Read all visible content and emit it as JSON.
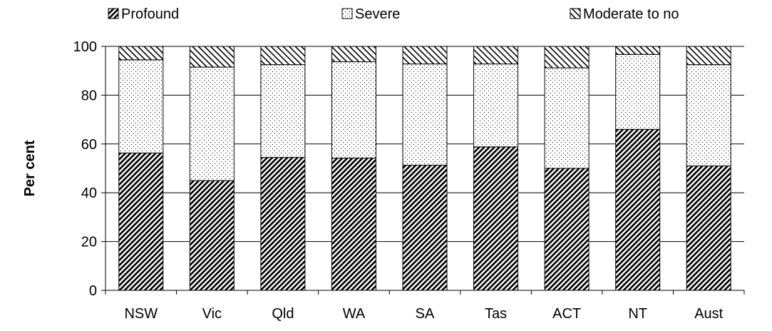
{
  "chart_data": {
    "type": "bar",
    "stacked": true,
    "categories": [
      "NSW",
      "Vic",
      "Qld",
      "WA",
      "SA",
      "Tas",
      "ACT",
      "NT",
      "Aust"
    ],
    "series": [
      {
        "name": "Profound",
        "values": [
          56.3,
          45.0,
          54.5,
          54.2,
          51.3,
          58.8,
          50.0,
          66.0,
          51.0
        ],
        "pattern": "dense-diagonal"
      },
      {
        "name": "Severe",
        "values": [
          38.2,
          46.5,
          38.0,
          39.5,
          41.5,
          34.0,
          41.2,
          30.7,
          41.5
        ],
        "pattern": "dots"
      },
      {
        "name": "Moderate to no",
        "values": [
          5.5,
          8.5,
          7.5,
          6.3,
          7.2,
          7.2,
          8.8,
          3.3,
          7.5
        ],
        "pattern": "sparse-diagonal"
      }
    ],
    "xlabel": "",
    "ylabel": "Per cent",
    "ylim": [
      0,
      100
    ],
    "yticks": [
      0,
      20,
      40,
      60,
      80,
      100
    ],
    "grid": "horizontal",
    "legend_position": "top"
  }
}
